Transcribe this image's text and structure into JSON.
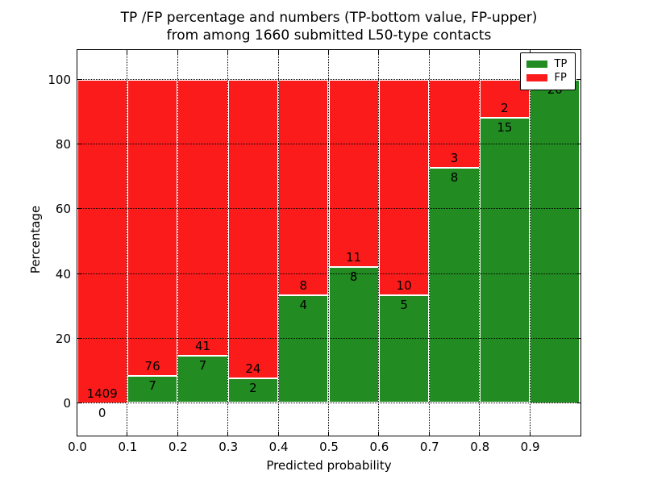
{
  "title": {
    "line1": "TP /FP percentage and numbers (TP-bottom value, FP-upper)",
    "line2": "from among 1660 submitted L50-type contacts"
  },
  "axes": {
    "xlabel": "Predicted probability",
    "ylabel": "Percentage",
    "x_tick_labels": [
      "0.0",
      "0.1",
      "0.2",
      "0.3",
      "0.4",
      "0.5",
      "0.6",
      "0.7",
      "0.8",
      "0.9"
    ],
    "y_tick_labels": [
      "0",
      "20",
      "40",
      "60",
      "80",
      "100"
    ],
    "y_tick_values": [
      0,
      20,
      40,
      60,
      80,
      100
    ]
  },
  "legend": {
    "items": [
      {
        "label": "TP",
        "color": "#228b22"
      },
      {
        "label": "FP",
        "color": "#fb1b1b"
      }
    ]
  },
  "colors": {
    "tp_green": "#228b22",
    "fp_red": "#fb1b1b",
    "grid": "#000000",
    "text": "#000000"
  },
  "chart_data": {
    "type": "bar",
    "stacked": true,
    "normalized_percent": true,
    "title": "TP /FP percentage and numbers (TP-bottom value, FP-upper) from among 1660 submitted L50-type contacts",
    "xlabel": "Predicted probability",
    "ylabel": "Percentage",
    "bin_edges": [
      0.0,
      0.1,
      0.2,
      0.3,
      0.4,
      0.5,
      0.6,
      0.7,
      0.8,
      0.9,
      1.0
    ],
    "categories": [
      "0.0-0.1",
      "0.1-0.2",
      "0.2-0.3",
      "0.3-0.4",
      "0.4-0.5",
      "0.5-0.6",
      "0.6-0.7",
      "0.7-0.8",
      "0.8-0.9",
      "0.9-1.0"
    ],
    "series": [
      {
        "name": "TP",
        "color": "#228b22",
        "counts": [
          0,
          7,
          7,
          2,
          4,
          8,
          5,
          8,
          15,
          20
        ]
      },
      {
        "name": "FP",
        "color": "#fb1b1b",
        "counts": [
          1409,
          76,
          41,
          24,
          8,
          11,
          10,
          3,
          2,
          0
        ]
      }
    ],
    "tp_percent": [
      0,
      8.4,
      14.6,
      7.7,
      33.3,
      42.1,
      33.3,
      72.7,
      88.2,
      100
    ],
    "total_contacts": 1660,
    "ylim": [
      -10,
      109
    ],
    "xlim": [
      0.0,
      1.0
    ],
    "grid": true,
    "legend_position": "upper right"
  }
}
